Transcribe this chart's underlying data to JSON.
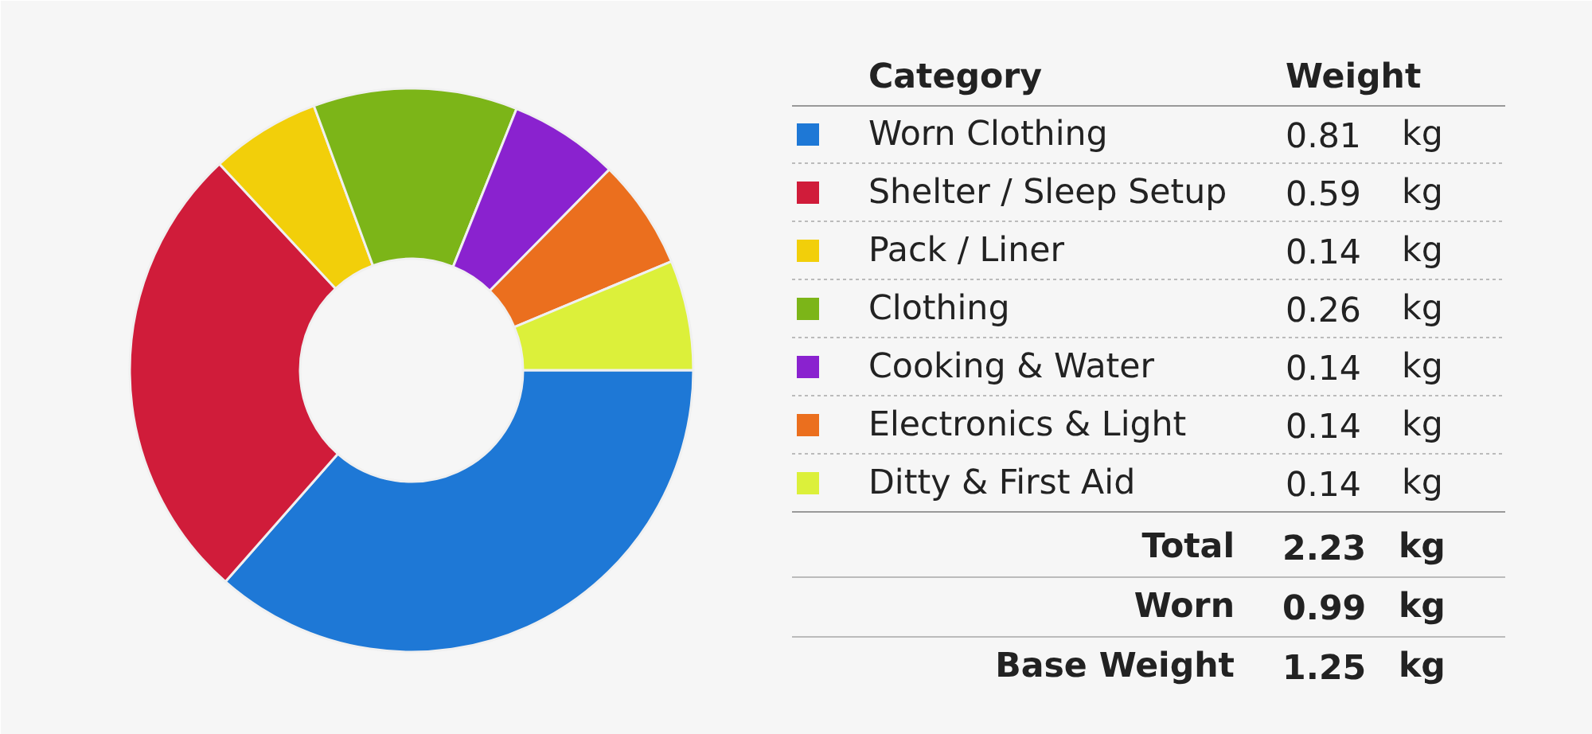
{
  "chart_data": {
    "type": "donut",
    "legend_title": "Category",
    "ylabel": "Weight",
    "legend": "right",
    "categories": [
      "Worn Clothing",
      "Shelter / Sleep Setup",
      "Pack / Liner",
      "Clothing",
      "Cooking & Water",
      "Electronics & Light",
      "Ditty & First Aid"
    ],
    "values": [
      0.81,
      0.59,
      0.14,
      0.26,
      0.14,
      0.14,
      0.14
    ],
    "colors": [
      "#1e78d6",
      "#d01c3a",
      "#f2cf0a",
      "#7cb518",
      "#8a22cf",
      "#eb6f1e",
      "#dcf03a"
    ],
    "value_labels": [
      "0.81 kg",
      "0.59 kg",
      "0.14 kg",
      "0.26 kg",
      "0.14 kg",
      "0.14 kg",
      "0.14 kg"
    ],
    "annotations": [
      "Total 2.23 kg",
      "Worn 0.99 kg",
      "Base Weight 1.25 kg"
    ]
  }
}
